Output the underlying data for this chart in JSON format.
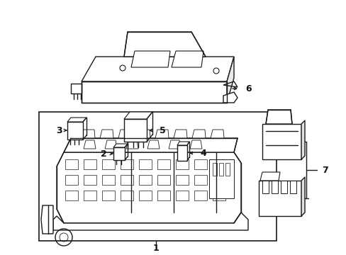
{
  "background_color": "#ffffff",
  "line_color": "#1a1a1a",
  "label_color": "#111111",
  "lw": 1.0,
  "fig_w": 4.89,
  "fig_h": 3.6,
  "dpi": 100
}
